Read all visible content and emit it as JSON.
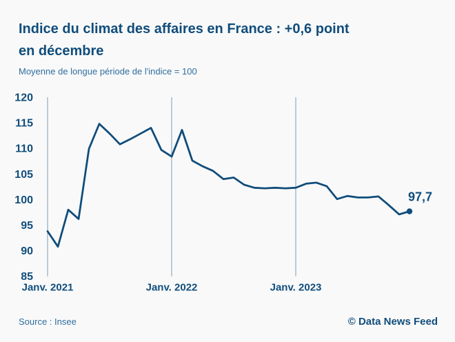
{
  "header": {
    "title_line1": "Indice du climat des affaires en France : +0,6 point",
    "title_line2": "en décembre",
    "subtitle": "Moyenne de longue période de l'indice = 100"
  },
  "chart_data": {
    "type": "line",
    "title": "Indice du climat des affaires en France : +0,6 point en décembre",
    "unit_note": "Moyenne de longue période de l'indice = 100",
    "xlabel": "",
    "ylabel": "",
    "ylim": [
      85,
      120
    ],
    "y_ticks": [
      120,
      115,
      110,
      105,
      100,
      95,
      90,
      85
    ],
    "x_tick_labels": [
      "Janv. 2021",
      "Janv. 2022",
      "Janv. 2023"
    ],
    "x_tick_month_index": [
      0,
      12,
      24
    ],
    "grid": "vertical-gridlines-at-january-only",
    "legend": "none",
    "frequency": "monthly",
    "x_start": "Janv. 2021",
    "series": [
      {
        "name": "Indice du climat des affaires en France",
        "values": [
          93.8,
          90.8,
          98.0,
          96.2,
          109.9,
          114.8,
          112.9,
          110.8,
          111.8,
          112.9,
          114.0,
          109.7,
          108.4,
          113.6,
          107.6,
          106.5,
          105.6,
          104.0,
          104.3,
          102.9,
          102.3,
          102.2,
          102.3,
          102.2,
          102.3,
          103.1,
          103.3,
          102.6,
          100.1,
          100.7,
          100.4,
          100.4,
          100.6,
          98.9,
          97.1,
          97.7
        ]
      }
    ],
    "last_value": 97.7,
    "last_value_label": "97,7"
  },
  "footer": {
    "source": "Source : Insee",
    "credit": "© Data News Feed"
  },
  "colors": {
    "background": "#f9f9f9",
    "accent_dark": "#104d7c",
    "accent_medium": "#2f6e9e",
    "gridline": "#809cb4"
  }
}
